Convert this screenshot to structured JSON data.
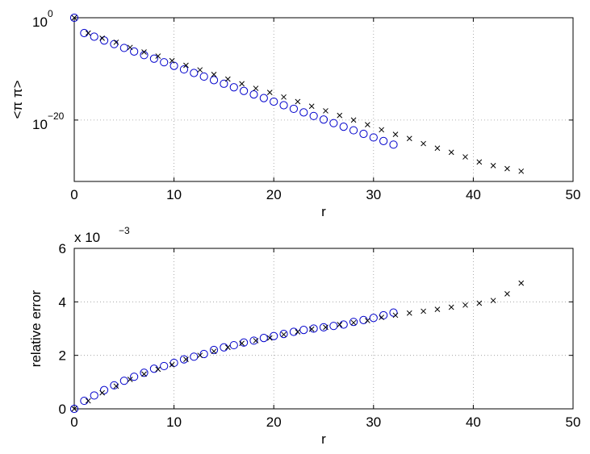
{
  "chart_data": [
    {
      "type": "scatter",
      "xlabel": "r",
      "ylabel": "<π π>",
      "xlim": [
        0,
        50
      ],
      "yscale": "log",
      "ylim_exponent": [
        -32,
        0
      ],
      "xticks": [
        "0",
        "10",
        "20",
        "30",
        "40",
        "50"
      ],
      "yticks": [
        {
          "value": 0,
          "base": "10",
          "exp": "0"
        },
        {
          "value": -20,
          "base": "10",
          "exp": "−20"
        }
      ],
      "grid": true,
      "series": [
        {
          "marker": "circle",
          "color": "#0000cc",
          "x": [
            0,
            1,
            2,
            3,
            4,
            5,
            6,
            7,
            8,
            9,
            10,
            11,
            12,
            13,
            14,
            15,
            16,
            17,
            18,
            19,
            20,
            21,
            22,
            23,
            24,
            25,
            26,
            27,
            28,
            29,
            30,
            31,
            32
          ],
          "log10_y": [
            0,
            -3,
            -3.7,
            -4.45,
            -5.15,
            -5.9,
            -6.6,
            -7.3,
            -8,
            -8.7,
            -9.4,
            -10.1,
            -10.8,
            -11.5,
            -12.2,
            -12.9,
            -13.6,
            -14.3,
            -15,
            -15.7,
            -16.4,
            -17.1,
            -17.8,
            -18.5,
            -19.2,
            -19.9,
            -20.6,
            -21.3,
            -22,
            -22.7,
            -23.4,
            -24.1,
            -24.8
          ]
        },
        {
          "marker": "x",
          "color": "#000000",
          "x": [
            0,
            1.4,
            2.8,
            4.2,
            5.6,
            7.0,
            8.4,
            9.8,
            11.2,
            12.6,
            14.0,
            15.4,
            16.8,
            18.2,
            19.6,
            21.0,
            22.4,
            23.8,
            25.2,
            26.6,
            28.0,
            29.4,
            30.8,
            32.2,
            33.6,
            35.0,
            36.4,
            37.8,
            39.2,
            40.6,
            42.0,
            43.4,
            44.8
          ],
          "log10_y": [
            0,
            -3,
            -4,
            -4.8,
            -5.8,
            -6.7,
            -7.5,
            -8.4,
            -9.3,
            -10.2,
            -11.1,
            -12,
            -12.9,
            -13.8,
            -14.6,
            -15.5,
            -16.4,
            -17.3,
            -18.2,
            -19.1,
            -20,
            -20.9,
            -21.9,
            -22.8,
            -23.6,
            -24.6,
            -25.5,
            -26.3,
            -27.2,
            -28.2,
            -28.9,
            -29.5,
            -30
          ]
        }
      ]
    },
    {
      "type": "scatter",
      "xlabel": "r",
      "ylabel": "relative error",
      "exponent_label": "x 10",
      "exponent_value": "−3",
      "xlim": [
        0,
        50
      ],
      "ylim": [
        0,
        6
      ],
      "xticks": [
        "0",
        "10",
        "20",
        "30",
        "40",
        "50"
      ],
      "yticks": [
        "0",
        "2",
        "4",
        "6"
      ],
      "grid": true,
      "series": [
        {
          "marker": "circle",
          "color": "#0000cc",
          "x": [
            0,
            1,
            2,
            3,
            4,
            5,
            6,
            7,
            8,
            9,
            10,
            11,
            12,
            13,
            14,
            15,
            16,
            17,
            18,
            19,
            20,
            21,
            22,
            23,
            24,
            25,
            26,
            27,
            28,
            29,
            30,
            31,
            32
          ],
          "y": [
            0,
            0.3,
            0.5,
            0.7,
            0.88,
            1.05,
            1.2,
            1.35,
            1.5,
            1.6,
            1.72,
            1.85,
            1.95,
            2.05,
            2.2,
            2.3,
            2.38,
            2.48,
            2.55,
            2.65,
            2.72,
            2.8,
            2.88,
            2.95,
            3.0,
            3.05,
            3.1,
            3.15,
            3.25,
            3.32,
            3.4,
            3.5,
            3.6
          ]
        },
        {
          "marker": "x",
          "color": "#000000",
          "x": [
            0,
            1.4,
            2.8,
            4.2,
            5.6,
            7.0,
            8.4,
            9.8,
            11.2,
            12.6,
            14.0,
            15.4,
            16.8,
            18.2,
            19.6,
            21.0,
            22.4,
            23.8,
            25.2,
            26.6,
            28.0,
            29.4,
            30.8,
            32.2,
            33.6,
            35.0,
            36.4,
            37.8,
            39.2,
            40.6,
            42.0,
            43.4,
            44.8
          ],
          "y": [
            0,
            0.3,
            0.6,
            0.85,
            1.1,
            1.3,
            1.48,
            1.65,
            1.85,
            2.0,
            2.15,
            2.3,
            2.45,
            2.55,
            2.65,
            2.78,
            2.88,
            2.98,
            3.05,
            3.15,
            3.22,
            3.3,
            3.42,
            3.5,
            3.58,
            3.65,
            3.72,
            3.8,
            3.88,
            3.95,
            4.05,
            4.3,
            4.7
          ]
        }
      ]
    }
  ]
}
